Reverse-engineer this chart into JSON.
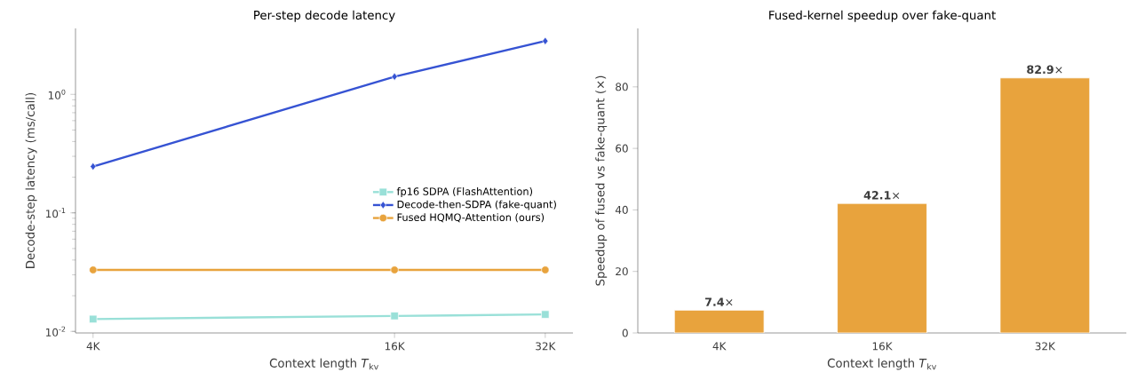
{
  "chart_data": [
    {
      "type": "line",
      "title": "Per-step decode latency",
      "xlabel": "Context length *T*$_{kv}$",
      "ylabel": "Decode-step latency (ms/call)",
      "x": [
        4,
        16,
        32
      ],
      "log": "xy",
      "xlim": [
        3.69,
        36.35
      ],
      "ylim": [
        0.0097,
        3.6
      ],
      "xticks": [
        {
          "value": 4,
          "label": "4K"
        },
        {
          "value": 16,
          "label": "16K"
        },
        {
          "value": 32,
          "label": "32K"
        }
      ],
      "yticks": [
        {
          "value": 0.01,
          "label": "10$^{-2}$"
        },
        {
          "value": 0.1,
          "label": "10$^{-1}$"
        },
        {
          "value": 1,
          "label": "10$^{0}$"
        }
      ],
      "legend": "right",
      "grid": false,
      "series": [
        {
          "name": "fp16 SDPA (FlashAttention)",
          "color": "#99e0d8",
          "marker": "square",
          "values": [
            0.0127,
            0.0135,
            0.0139
          ]
        },
        {
          "name": "Decode-then-SDPA (fake-quant)",
          "color": "#3653d3",
          "marker": "diamond",
          "values": [
            0.246,
            1.41,
            2.82
          ]
        },
        {
          "name": "Fused HQMQ-Attention (ours)",
          "color": "#e8a33d",
          "marker": "circle",
          "values": [
            0.033,
            0.033,
            0.033
          ]
        }
      ]
    },
    {
      "type": "bar",
      "title": "Fused-kernel speedup over fake-quant",
      "xlabel": "Context length *T*$_{kv}$",
      "ylabel": "Speedup of fused vs fake-quant (×)",
      "categories": [
        "4K",
        "16K",
        "32K"
      ],
      "values": [
        7.4,
        42.1,
        82.9
      ],
      "color": "#e8a33d",
      "value_labels": [
        "**7.4**×",
        "**42.1**×",
        "**82.9**×"
      ],
      "ylim": [
        0,
        99
      ],
      "yticks": [
        0,
        20,
        40,
        60,
        80
      ],
      "grid": false
    }
  ]
}
